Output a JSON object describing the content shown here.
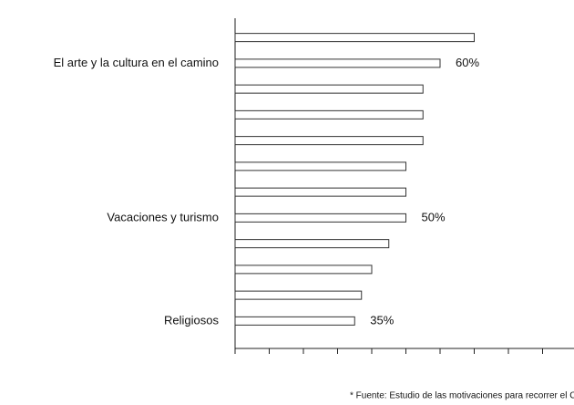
{
  "chart_data": {
    "type": "barh",
    "categories": [
      null,
      "El arte y la cultura en el camino",
      null,
      null,
      null,
      null,
      null,
      "Vacaciones y turismo",
      null,
      null,
      null,
      "Religiosos"
    ],
    "values": [
      70,
      60,
      55,
      55,
      55,
      50,
      50,
      50,
      45,
      40,
      37,
      35
    ],
    "value_labels": [
      null,
      "60%",
      null,
      null,
      null,
      null,
      null,
      "50%",
      null,
      null,
      null,
      "35%"
    ],
    "color": "#ffffff",
    "xlim": [
      0,
      100
    ],
    "xticks": [
      0,
      10,
      20,
      30,
      40,
      50,
      60,
      70,
      80,
      90
    ],
    "footnote": "* Fuente: Estudio de las motivaciones para recorrer el Camino de Sa"
  }
}
